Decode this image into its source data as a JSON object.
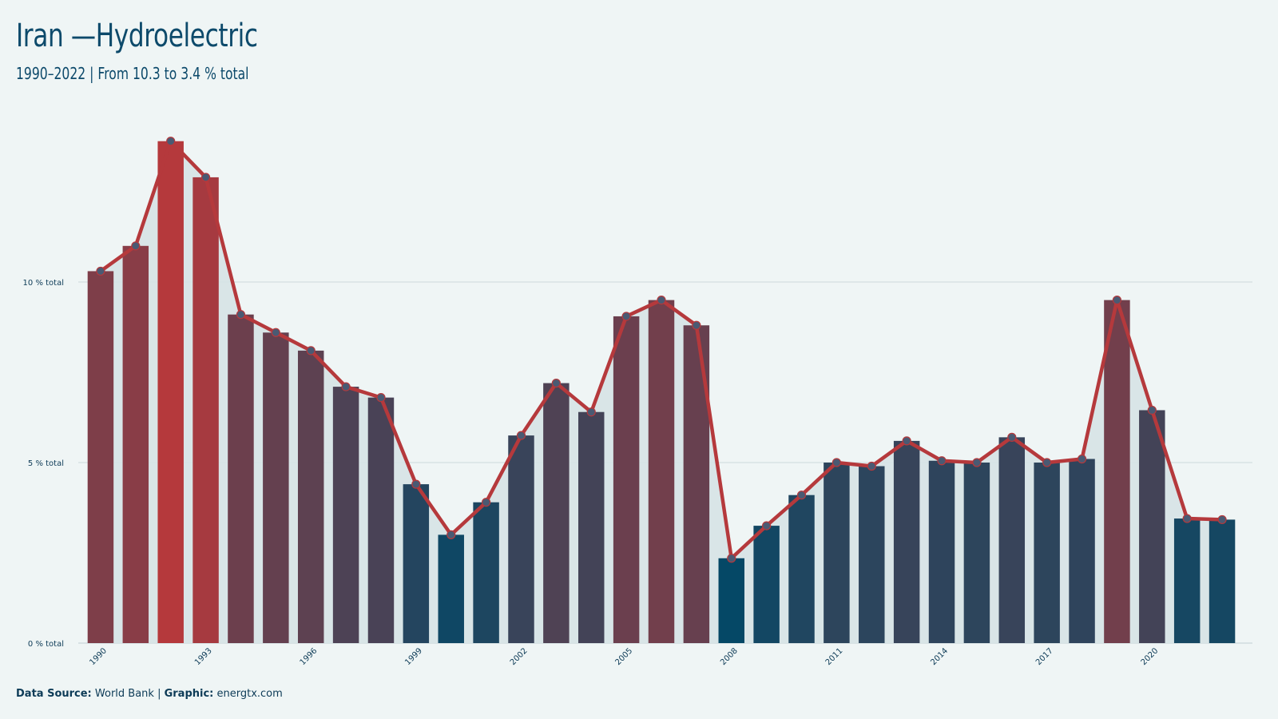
{
  "header": {
    "title": "Iran —Hydroelectric",
    "subtitle": "1990–2022 | From 10.3 to 3.4 % total"
  },
  "footer": {
    "source_label": "Data Source:",
    "source_value": " World Bank | ",
    "graphic_label": "Graphic:",
    "graphic_value": " energtx.com"
  },
  "colors": {
    "background": "#eff5f5",
    "line": "#b5393c",
    "high_bar": "#b5393c",
    "low_bar": "#054866",
    "area": "#d6e3e5",
    "marker": "#4a5a73"
  },
  "chart_data": {
    "type": "bar",
    "x": [
      1990,
      1991,
      1992,
      1993,
      1994,
      1995,
      1996,
      1997,
      1998,
      1999,
      2000,
      2001,
      2002,
      2003,
      2004,
      2005,
      2006,
      2007,
      2008,
      2009,
      2010,
      2011,
      2012,
      2013,
      2014,
      2015,
      2016,
      2017,
      2018,
      2019,
      2020,
      2021,
      2022
    ],
    "values": [
      10.3,
      11.0,
      13.9,
      12.9,
      9.1,
      8.6,
      8.1,
      7.1,
      6.8,
      4.4,
      3.0,
      3.9,
      5.75,
      7.2,
      6.4,
      9.05,
      9.5,
      8.8,
      2.35,
      3.25,
      4.1,
      5.0,
      4.9,
      5.6,
      5.05,
      5.0,
      5.7,
      5.0,
      5.1,
      9.5,
      6.45,
      3.45,
      3.42
    ],
    "overlay": "line",
    "ylabel": "",
    "ylim": [
      0,
      14.5
    ],
    "yticks": [
      0,
      5,
      10
    ],
    "ytick_labels": [
      "0 % total",
      "5 % total",
      "10 % total"
    ],
    "xtick_labels": [
      "1990",
      "1993",
      "1996",
      "1999",
      "2002",
      "2005",
      "2008",
      "2011",
      "2014",
      "2017",
      "2020"
    ],
    "grid": true
  }
}
